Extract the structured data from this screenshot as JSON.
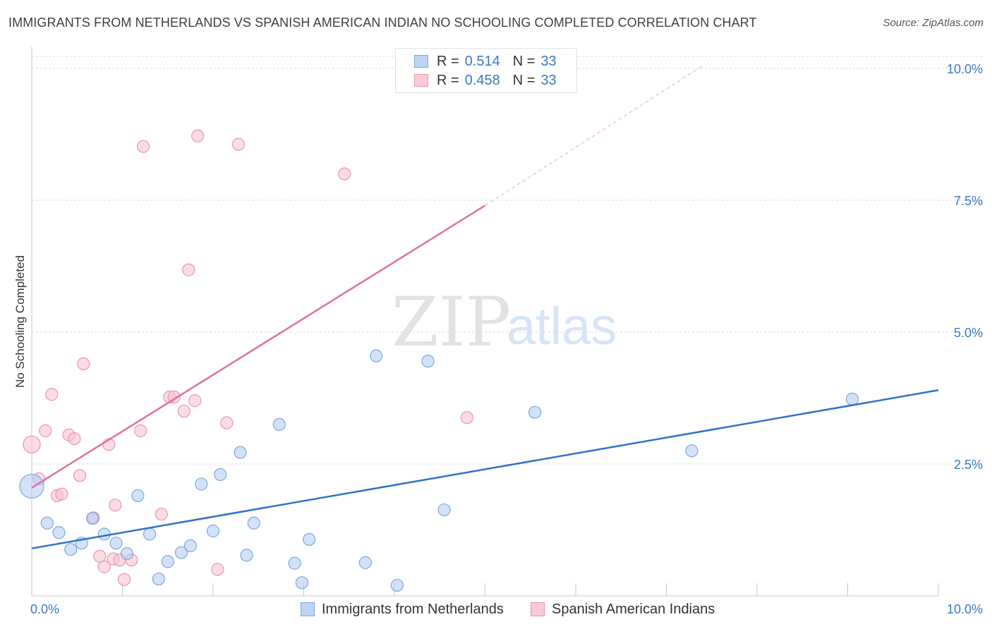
{
  "header": {
    "title": "IMMIGRANTS FROM NETHERLANDS VS SPANISH AMERICAN INDIAN NO SCHOOLING COMPLETED CORRELATION CHART",
    "source": "Source: ZipAtlas.com"
  },
  "watermark": {
    "zip": "ZIP",
    "atlas": "atlas"
  },
  "legend_stats": [
    {
      "r_label": "R =",
      "r_value": "0.514",
      "n_label": "N =",
      "n_value": "33"
    },
    {
      "r_label": "R =",
      "r_value": "0.458",
      "n_label": "N =",
      "n_value": "33"
    }
  ],
  "chart_data": {
    "type": "scatter",
    "title": "IMMIGRANTS FROM NETHERLANDS VS SPANISH AMERICAN INDIAN NO SCHOOLING COMPLETED CORRELATION CHART",
    "xlabel": "",
    "ylabel": "No Schooling Completed",
    "xlim": [
      0,
      10
    ],
    "ylim": [
      0,
      10.2
    ],
    "x_tick_labels": [
      "0.0%",
      "10.0%"
    ],
    "y_ticks": [
      2.5,
      5.0,
      7.5,
      10.0
    ],
    "y_tick_labels": [
      "2.5%",
      "5.0%",
      "7.5%",
      "10.0%"
    ],
    "grid": true,
    "legend_position": "bottom",
    "colors": {
      "blue_fill": "#aecbf2",
      "blue_stroke": "#7ea8dd",
      "blue_line": "#2d72cc",
      "pink_fill": "#f7bfd0",
      "pink_stroke": "#e995b1",
      "pink_line": "#e0719a",
      "tick_label": "#3a78c4"
    },
    "series": [
      {
        "name": "Immigrants from Netherlands",
        "color": "#aecbf2",
        "points": [
          [
            0.0,
            2.08
          ],
          [
            0.17,
            1.38
          ],
          [
            0.3,
            1.2
          ],
          [
            0.43,
            0.88
          ],
          [
            0.55,
            1.0
          ],
          [
            0.67,
            1.47
          ],
          [
            0.8,
            1.17
          ],
          [
            0.93,
            1.0
          ],
          [
            1.05,
            0.8
          ],
          [
            1.17,
            1.9
          ],
          [
            1.3,
            1.17
          ],
          [
            1.4,
            0.32
          ],
          [
            1.5,
            0.65
          ],
          [
            1.65,
            0.82
          ],
          [
            1.75,
            0.95
          ],
          [
            1.87,
            2.12
          ],
          [
            2.0,
            1.23
          ],
          [
            2.08,
            2.3
          ],
          [
            2.3,
            2.72
          ],
          [
            2.37,
            0.77
          ],
          [
            2.45,
            1.38
          ],
          [
            2.73,
            3.25
          ],
          [
            2.9,
            0.62
          ],
          [
            2.98,
            0.25
          ],
          [
            3.06,
            1.07
          ],
          [
            3.68,
            0.63
          ],
          [
            3.8,
            4.55
          ],
          [
            4.03,
            0.2
          ],
          [
            4.37,
            4.45
          ],
          [
            4.55,
            1.63
          ],
          [
            5.55,
            3.48
          ],
          [
            7.28,
            2.75
          ],
          [
            9.05,
            3.73
          ]
        ]
      },
      {
        "name": "Spanish American Indians",
        "color": "#f7bfd0",
        "points": [
          [
            0.0,
            2.87
          ],
          [
            0.08,
            2.22
          ],
          [
            0.15,
            3.13
          ],
          [
            0.22,
            3.82
          ],
          [
            0.28,
            1.9
          ],
          [
            0.33,
            1.93
          ],
          [
            0.41,
            3.05
          ],
          [
            0.47,
            2.98
          ],
          [
            0.53,
            2.28
          ],
          [
            0.57,
            4.4
          ],
          [
            0.68,
            1.48
          ],
          [
            0.75,
            0.75
          ],
          [
            0.8,
            0.55
          ],
          [
            0.85,
            2.87
          ],
          [
            0.9,
            0.7
          ],
          [
            0.92,
            1.72
          ],
          [
            0.97,
            0.68
          ],
          [
            1.02,
            0.31
          ],
          [
            1.1,
            0.68
          ],
          [
            1.2,
            3.13
          ],
          [
            1.23,
            8.52
          ],
          [
            1.43,
            1.55
          ],
          [
            1.52,
            3.77
          ],
          [
            1.57,
            3.77
          ],
          [
            1.68,
            3.5
          ],
          [
            1.73,
            6.18
          ],
          [
            1.8,
            3.7
          ],
          [
            1.83,
            8.72
          ],
          [
            2.05,
            0.5
          ],
          [
            2.15,
            3.28
          ],
          [
            2.28,
            8.56
          ],
          [
            3.45,
            8.0
          ],
          [
            4.8,
            3.38
          ]
        ]
      }
    ],
    "trendlines": [
      {
        "series": "Immigrants from Netherlands",
        "from": [
          0.0,
          0.9
        ],
        "to": [
          10.0,
          3.9
        ]
      },
      {
        "series": "Spanish American Indians",
        "from": [
          0.0,
          2.05
        ],
        "to": [
          5.0,
          7.4
        ],
        "dashed_to": [
          7.4,
          10.05
        ]
      }
    ]
  }
}
